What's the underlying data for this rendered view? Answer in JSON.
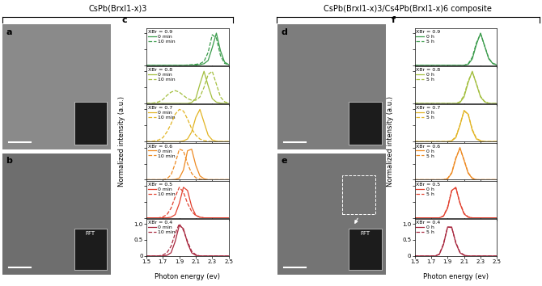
{
  "headers": {
    "left": "CsPb(BrxI1-x)3",
    "right": "CsPb(BrxI1-x)3/Cs4Pb(BrxI1-x)6 composite"
  },
  "image_panels": [
    {
      "panel": "a"
    },
    {
      "panel": "b",
      "inset_text": "FFT"
    },
    {
      "panel": "d"
    },
    {
      "panel": "e",
      "inset_text": "FFT"
    }
  ],
  "chart_data": [
    {
      "type": "line",
      "panel": "c",
      "xlabel": "Photon energy (ev)",
      "ylabel": "Normalized intensity (a.u.)",
      "xlim": [
        1.5,
        2.5
      ],
      "ylim": [
        0,
        1.15
      ],
      "xticks": [
        1.5,
        1.7,
        1.9,
        2.1,
        2.3,
        2.5
      ],
      "yticks": [
        0,
        0.5,
        {
          "value": 1,
          "label": "1.0"
        }
      ],
      "legend": "upper left",
      "x": [
        1.5,
        1.55,
        1.6,
        1.65,
        1.7,
        1.75,
        1.8,
        1.85,
        1.9,
        1.95,
        2.0,
        2.05,
        2.1,
        2.15,
        2.2,
        2.25,
        2.3,
        2.35,
        2.4,
        2.45,
        2.5
      ],
      "subplots": [
        {
          "title": "XBr = 0.9",
          "color": "#3a9b4b",
          "tick_labels": false,
          "series": [
            {
              "name": "0 min",
              "line_style": "solid",
              "values": [
                0,
                0,
                0,
                0,
                0,
                0,
                0,
                0,
                0,
                0,
                0,
                0,
                0.01,
                0.02,
                0.05,
                0.15,
                0.55,
                1.0,
                0.45,
                0.1,
                0.02
              ]
            },
            {
              "name": "10 min",
              "line_style": "dashed",
              "values": [
                0,
                0,
                0,
                0,
                0,
                0,
                0,
                0,
                0,
                0,
                0.01,
                0.02,
                0.03,
                0.05,
                0.12,
                0.4,
                0.95,
                0.85,
                0.3,
                0.06,
                0.02
              ]
            }
          ]
        },
        {
          "title": "XBr = 0.8",
          "color": "#a3bf3f",
          "tick_labels": false,
          "series": [
            {
              "name": "0 min",
              "line_style": "solid",
              "values": [
                0,
                0,
                0,
                0,
                0,
                0,
                0,
                0,
                0,
                0,
                0,
                0.03,
                0.15,
                0.6,
                1.0,
                0.55,
                0.15,
                0.04,
                0.01,
                0,
                0
              ]
            },
            {
              "name": "10 min",
              "line_style": "dashed",
              "values": [
                0,
                0,
                0.02,
                0.05,
                0.12,
                0.25,
                0.35,
                0.4,
                0.35,
                0.25,
                0.15,
                0.1,
                0.1,
                0.2,
                0.5,
                0.9,
                1.0,
                0.6,
                0.2,
                0.05,
                0.01
              ]
            }
          ]
        },
        {
          "title": "XBr = 0.7",
          "color": "#e2b423",
          "tick_labels": false,
          "series": [
            {
              "name": "0 min",
              "line_style": "solid",
              "values": [
                0,
                0,
                0,
                0,
                0,
                0,
                0,
                0,
                0,
                0.02,
                0.08,
                0.3,
                0.75,
                1.0,
                0.6,
                0.2,
                0.05,
                0.01,
                0,
                0,
                0
              ]
            },
            {
              "name": "10 min",
              "line_style": "dashed",
              "values": [
                0,
                0,
                0.02,
                0.05,
                0.12,
                0.3,
                0.55,
                0.85,
                1.0,
                0.95,
                0.7,
                0.4,
                0.2,
                0.08,
                0.03,
                0.01,
                0,
                0,
                0,
                0,
                0
              ]
            }
          ]
        },
        {
          "title": "XBr = 0.6",
          "color": "#ee8a22",
          "tick_labels": false,
          "series": [
            {
              "name": "0 min",
              "line_style": "solid",
              "values": [
                0,
                0,
                0,
                0,
                0,
                0,
                0,
                0.01,
                0.05,
                0.3,
                0.9,
                0.95,
                0.45,
                0.12,
                0.03,
                0,
                0,
                0,
                0,
                0,
                0
              ]
            },
            {
              "name": "10 min",
              "line_style": "dashed",
              "values": [
                0,
                0,
                0,
                0,
                0,
                0.03,
                0.15,
                0.5,
                0.95,
                0.9,
                0.5,
                0.2,
                0.06,
                0.02,
                0,
                0,
                0,
                0,
                0,
                0,
                0
              ]
            }
          ]
        },
        {
          "title": "XBr = 0.5",
          "color": "#e2412f",
          "tick_labels": false,
          "series": [
            {
              "name": "0 min",
              "line_style": "solid",
              "values": [
                0,
                0,
                0,
                0,
                0,
                0,
                0.02,
                0.1,
                0.45,
                0.95,
                0.85,
                0.35,
                0.08,
                0.02,
                0,
                0,
                0,
                0,
                0,
                0,
                0
              ]
            },
            {
              "name": "10 min",
              "line_style": "dashed",
              "values": [
                0,
                0,
                0,
                0,
                0.03,
                0.1,
                0.3,
                0.65,
                0.95,
                0.8,
                0.45,
                0.2,
                0.07,
                0.02,
                0,
                0,
                0,
                0,
                0,
                0,
                0
              ]
            }
          ]
        },
        {
          "title": "XBr = 0.4",
          "color": "#a8283f",
          "series": [
            {
              "name": "0 min",
              "line_style": "solid",
              "values": [
                0,
                0,
                0,
                0,
                0,
                0.02,
                0.1,
                0.45,
                0.95,
                0.85,
                0.4,
                0.1,
                0.02,
                0,
                0,
                0,
                0,
                0,
                0,
                0,
                0
              ]
            },
            {
              "name": "10 min",
              "line_style": "dashed",
              "values": [
                0,
                0,
                0,
                0,
                0.03,
                0.1,
                0.3,
                0.7,
                1.0,
                0.8,
                0.45,
                0.15,
                0.04,
                0,
                0,
                0,
                0,
                0,
                0,
                0,
                0
              ]
            }
          ]
        }
      ]
    },
    {
      "type": "line",
      "panel": "f",
      "xlabel": "Photon energy (ev)",
      "ylabel": "Normalized intensity (a.u.)",
      "xlim": [
        1.5,
        2.5
      ],
      "ylim": [
        0,
        1.15
      ],
      "xticks": [
        1.5,
        1.7,
        1.9,
        2.1,
        2.3,
        2.5
      ],
      "yticks": [
        0,
        0.5,
        {
          "value": 1,
          "label": "1.0"
        }
      ],
      "legend": "upper left",
      "x": [
        1.5,
        1.55,
        1.6,
        1.65,
        1.7,
        1.75,
        1.8,
        1.85,
        1.9,
        1.95,
        2.0,
        2.05,
        2.1,
        2.15,
        2.2,
        2.25,
        2.3,
        2.35,
        2.4,
        2.45,
        2.5
      ],
      "subplots": [
        {
          "title": "XBr = 0.9",
          "color": "#3a9b4b",
          "tick_labels": false,
          "series": [
            {
              "name": "0 h",
              "line_style": "solid",
              "values": [
                0,
                0,
                0,
                0,
                0,
                0,
                0,
                0,
                0,
                0,
                0,
                0,
                0,
                0.03,
                0.2,
                0.65,
                1.0,
                0.6,
                0.2,
                0.05,
                0.01
              ]
            },
            {
              "name": "5 h",
              "line_style": "dashed",
              "values": [
                0,
                0,
                0,
                0,
                0,
                0,
                0,
                0,
                0,
                0,
                0,
                0,
                0,
                0.05,
                0.25,
                0.7,
                0.98,
                0.6,
                0.22,
                0.06,
                0.02
              ]
            }
          ]
        },
        {
          "title": "XBr = 0.8",
          "color": "#a3bf3f",
          "tick_labels": false,
          "series": [
            {
              "name": "0 h",
              "line_style": "solid",
              "values": [
                0,
                0,
                0,
                0,
                0,
                0,
                0,
                0,
                0,
                0,
                0,
                0.03,
                0.2,
                0.65,
                1.0,
                0.6,
                0.2,
                0.05,
                0,
                0,
                0
              ]
            },
            {
              "name": "5 h",
              "line_style": "dashed",
              "values": [
                0,
                0,
                0,
                0,
                0,
                0,
                0,
                0,
                0,
                0,
                0,
                0.05,
                0.25,
                0.7,
                0.97,
                0.62,
                0.22,
                0.06,
                0.01,
                0,
                0
              ]
            }
          ]
        },
        {
          "title": "XBr = 0.7",
          "color": "#e2b423",
          "tick_labels": false,
          "series": [
            {
              "name": "0 h",
              "line_style": "solid",
              "values": [
                0,
                0,
                0,
                0,
                0,
                0,
                0,
                0,
                0,
                0.02,
                0.12,
                0.5,
                0.97,
                0.85,
                0.35,
                0.08,
                0.02,
                0,
                0,
                0,
                0
              ]
            },
            {
              "name": "5 h",
              "line_style": "dashed",
              "values": [
                0,
                0,
                0,
                0,
                0,
                0,
                0,
                0,
                0,
                0.03,
                0.15,
                0.52,
                0.95,
                0.85,
                0.38,
                0.1,
                0.03,
                0,
                0,
                0,
                0
              ]
            }
          ]
        },
        {
          "title": "XBr = 0.6",
          "color": "#ee8a22",
          "tick_labels": false,
          "series": [
            {
              "name": "0 h",
              "line_style": "solid",
              "values": [
                0,
                0,
                0,
                0,
                0,
                0,
                0,
                0,
                0.03,
                0.2,
                0.65,
                1.0,
                0.6,
                0.2,
                0.04,
                0,
                0,
                0,
                0,
                0,
                0
              ]
            },
            {
              "name": "5 h",
              "line_style": "dashed",
              "values": [
                0,
                0,
                0,
                0,
                0,
                0,
                0,
                0,
                0.04,
                0.22,
                0.68,
                0.97,
                0.62,
                0.22,
                0.05,
                0,
                0,
                0,
                0,
                0,
                0
              ]
            }
          ]
        },
        {
          "title": "XBr = 0.5",
          "color": "#e2412f",
          "tick_labels": false,
          "series": [
            {
              "name": "0 h",
              "line_style": "solid",
              "values": [
                0,
                0,
                0,
                0,
                0,
                0,
                0,
                0.05,
                0.3,
                0.85,
                0.95,
                0.45,
                0.12,
                0.02,
                0,
                0,
                0,
                0,
                0,
                0,
                0
              ]
            },
            {
              "name": "5 h",
              "line_style": "dashed",
              "values": [
                0,
                0,
                0,
                0,
                0,
                0,
                0,
                0.06,
                0.33,
                0.85,
                0.93,
                0.47,
                0.14,
                0.03,
                0,
                0,
                0,
                0,
                0,
                0,
                0
              ]
            }
          ]
        },
        {
          "title": "XBr = 0.4",
          "color": "#a8283f",
          "series": [
            {
              "name": "0 h",
              "line_style": "solid",
              "values": [
                0,
                0,
                0,
                0,
                0,
                0,
                0.05,
                0.35,
                0.9,
                0.9,
                0.4,
                0.1,
                0.02,
                0,
                0,
                0,
                0,
                0,
                0,
                0,
                0
              ]
            },
            {
              "name": "5 h",
              "line_style": "dashed",
              "values": [
                0,
                0,
                0,
                0,
                0,
                0,
                0.06,
                0.38,
                0.9,
                0.88,
                0.42,
                0.12,
                0.03,
                0,
                0,
                0,
                0,
                0,
                0,
                0,
                0
              ]
            }
          ]
        }
      ]
    }
  ]
}
